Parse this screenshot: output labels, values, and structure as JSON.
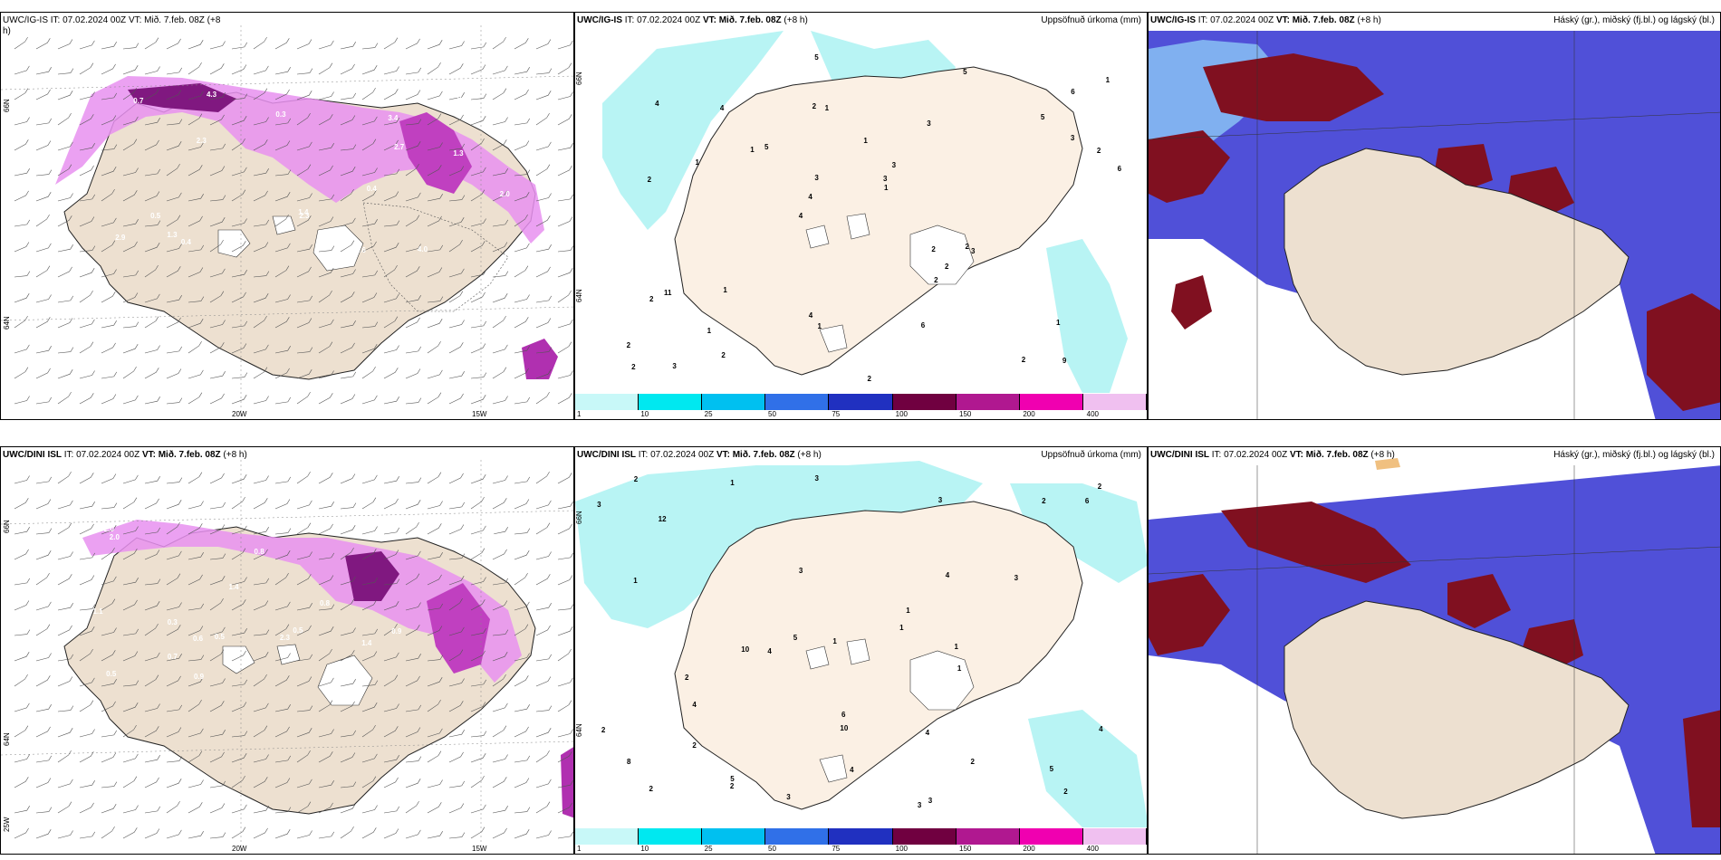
{
  "rows": [
    {
      "wind": {
        "title": "UWC/IG-IS IT: 07.02.2024 00Z VT: Mið. 7.feb. 08Z (+8",
        "title2": "h)"
      },
      "precip": {
        "model": "UWC/IG-IS",
        "it": " IT: 07.02.2024 00Z ",
        "vt": "VT: Mið. 7.feb. 08Z",
        "lead": " (+8 h)",
        "right": "Uppsöfnuð úrkoma (mm)"
      },
      "cloud": {
        "model": "UWC/IG-IS",
        "it": " IT: 07.02.2024 00Z ",
        "vt": "VT: Mið. 7.feb. 08Z",
        "lead": " (+8 h)",
        "right": "Háský (gr.), miðský (fj.bl.) og lágský (bl.)"
      },
      "precip_labels": [
        "9",
        "2",
        "6",
        "4",
        "3",
        "3",
        "2",
        "1",
        "11",
        "5",
        "2",
        "1",
        "1",
        "3",
        "3",
        "4",
        "5",
        "6",
        "2",
        "3",
        "4",
        "4",
        "3",
        "4",
        "5",
        "1",
        "2",
        "1",
        "2",
        "2",
        "1",
        "1",
        "2",
        "2",
        "2",
        "3",
        "2",
        "1",
        "1",
        "2",
        "5",
        "1",
        "2",
        "6"
      ],
      "wind_labels": [
        "2.0",
        "4.0",
        "2.3",
        "2.9",
        "1.4",
        "2.3",
        "4.3",
        "3.4",
        "2.6",
        "1.3",
        "0.4",
        "0.8",
        "1.8",
        "2.7",
        "0.4",
        "0.7",
        "0.5",
        "1.3",
        "0.9",
        "0.3"
      ]
    },
    {
      "wind": {
        "model": "UWC/DINI ISL",
        "it": " IT: 07.02.2024 00Z ",
        "vt": "VT: Mið. 7.feb. 08Z",
        "lead": " (+8 h)"
      },
      "precip": {
        "model": "UWC/DINI ISL",
        "it": " IT: 07.02.2024 00Z ",
        "vt": "VT: Mið. 7.feb. 08Z",
        "lead": " (+8 h)",
        "right": "Uppsöfnuð úrkoma (mm)"
      },
      "cloud": {
        "model": "UWC/DINI ISL",
        "it": " IT: 07.02.2024 00Z ",
        "vt": "VT: Mið. 7.feb. 08Z",
        "lead": " (+8 h)",
        "right": "Háský (gr.), miðský (fj.bl.) og lágský (bl.)"
      },
      "precip_labels": [
        "3",
        "3",
        "5",
        "2",
        "1",
        "12",
        "10",
        "2",
        "3",
        "3",
        "2",
        "4",
        "5",
        "10",
        "3",
        "1",
        "1",
        "2",
        "4",
        "3",
        "4",
        "2",
        "1",
        "2",
        "3",
        "2",
        "2",
        "4",
        "2",
        "1",
        "1",
        "3",
        "6",
        "6",
        "2",
        "1",
        "4",
        "8",
        "4",
        "5"
      ],
      "wind_labels": [
        "2.0",
        "2.0",
        "1.1",
        "1.2",
        "0.5",
        "1.4",
        "0.8",
        "0.5",
        "0.5",
        "0.9",
        "0.6",
        "0.8",
        "0.9",
        "0.3",
        "0.5",
        "1.4",
        "2.3",
        "0.7"
      ]
    }
  ],
  "axes": {
    "lon1": "20W",
    "lon2": "15W",
    "lat_top": "66N",
    "lat_bottom": "64N",
    "lat_top_dini": "66N",
    "lat_bottom_dini": "64N",
    "lat_corner": "25W"
  },
  "colorbar": {
    "labels": [
      "1",
      "10",
      "25",
      "50",
      "75",
      "100",
      "150",
      "200",
      "400"
    ],
    "colors": [
      "#c8f8f8",
      "#00e8f0",
      "#00c0f0",
      "#3070e8",
      "#2030c0",
      "#700040",
      "#b01890",
      "#f000b0",
      "#f0c0f0"
    ]
  },
  "colors": {
    "land": "#ede0d0",
    "precip": "#b8f4f4",
    "cloud_dark": "#3030c0",
    "cloud_mid": "#5050d8",
    "cloud_high": "#801020",
    "wind_core": "#c040c0",
    "wind_light": "#e890f0"
  }
}
